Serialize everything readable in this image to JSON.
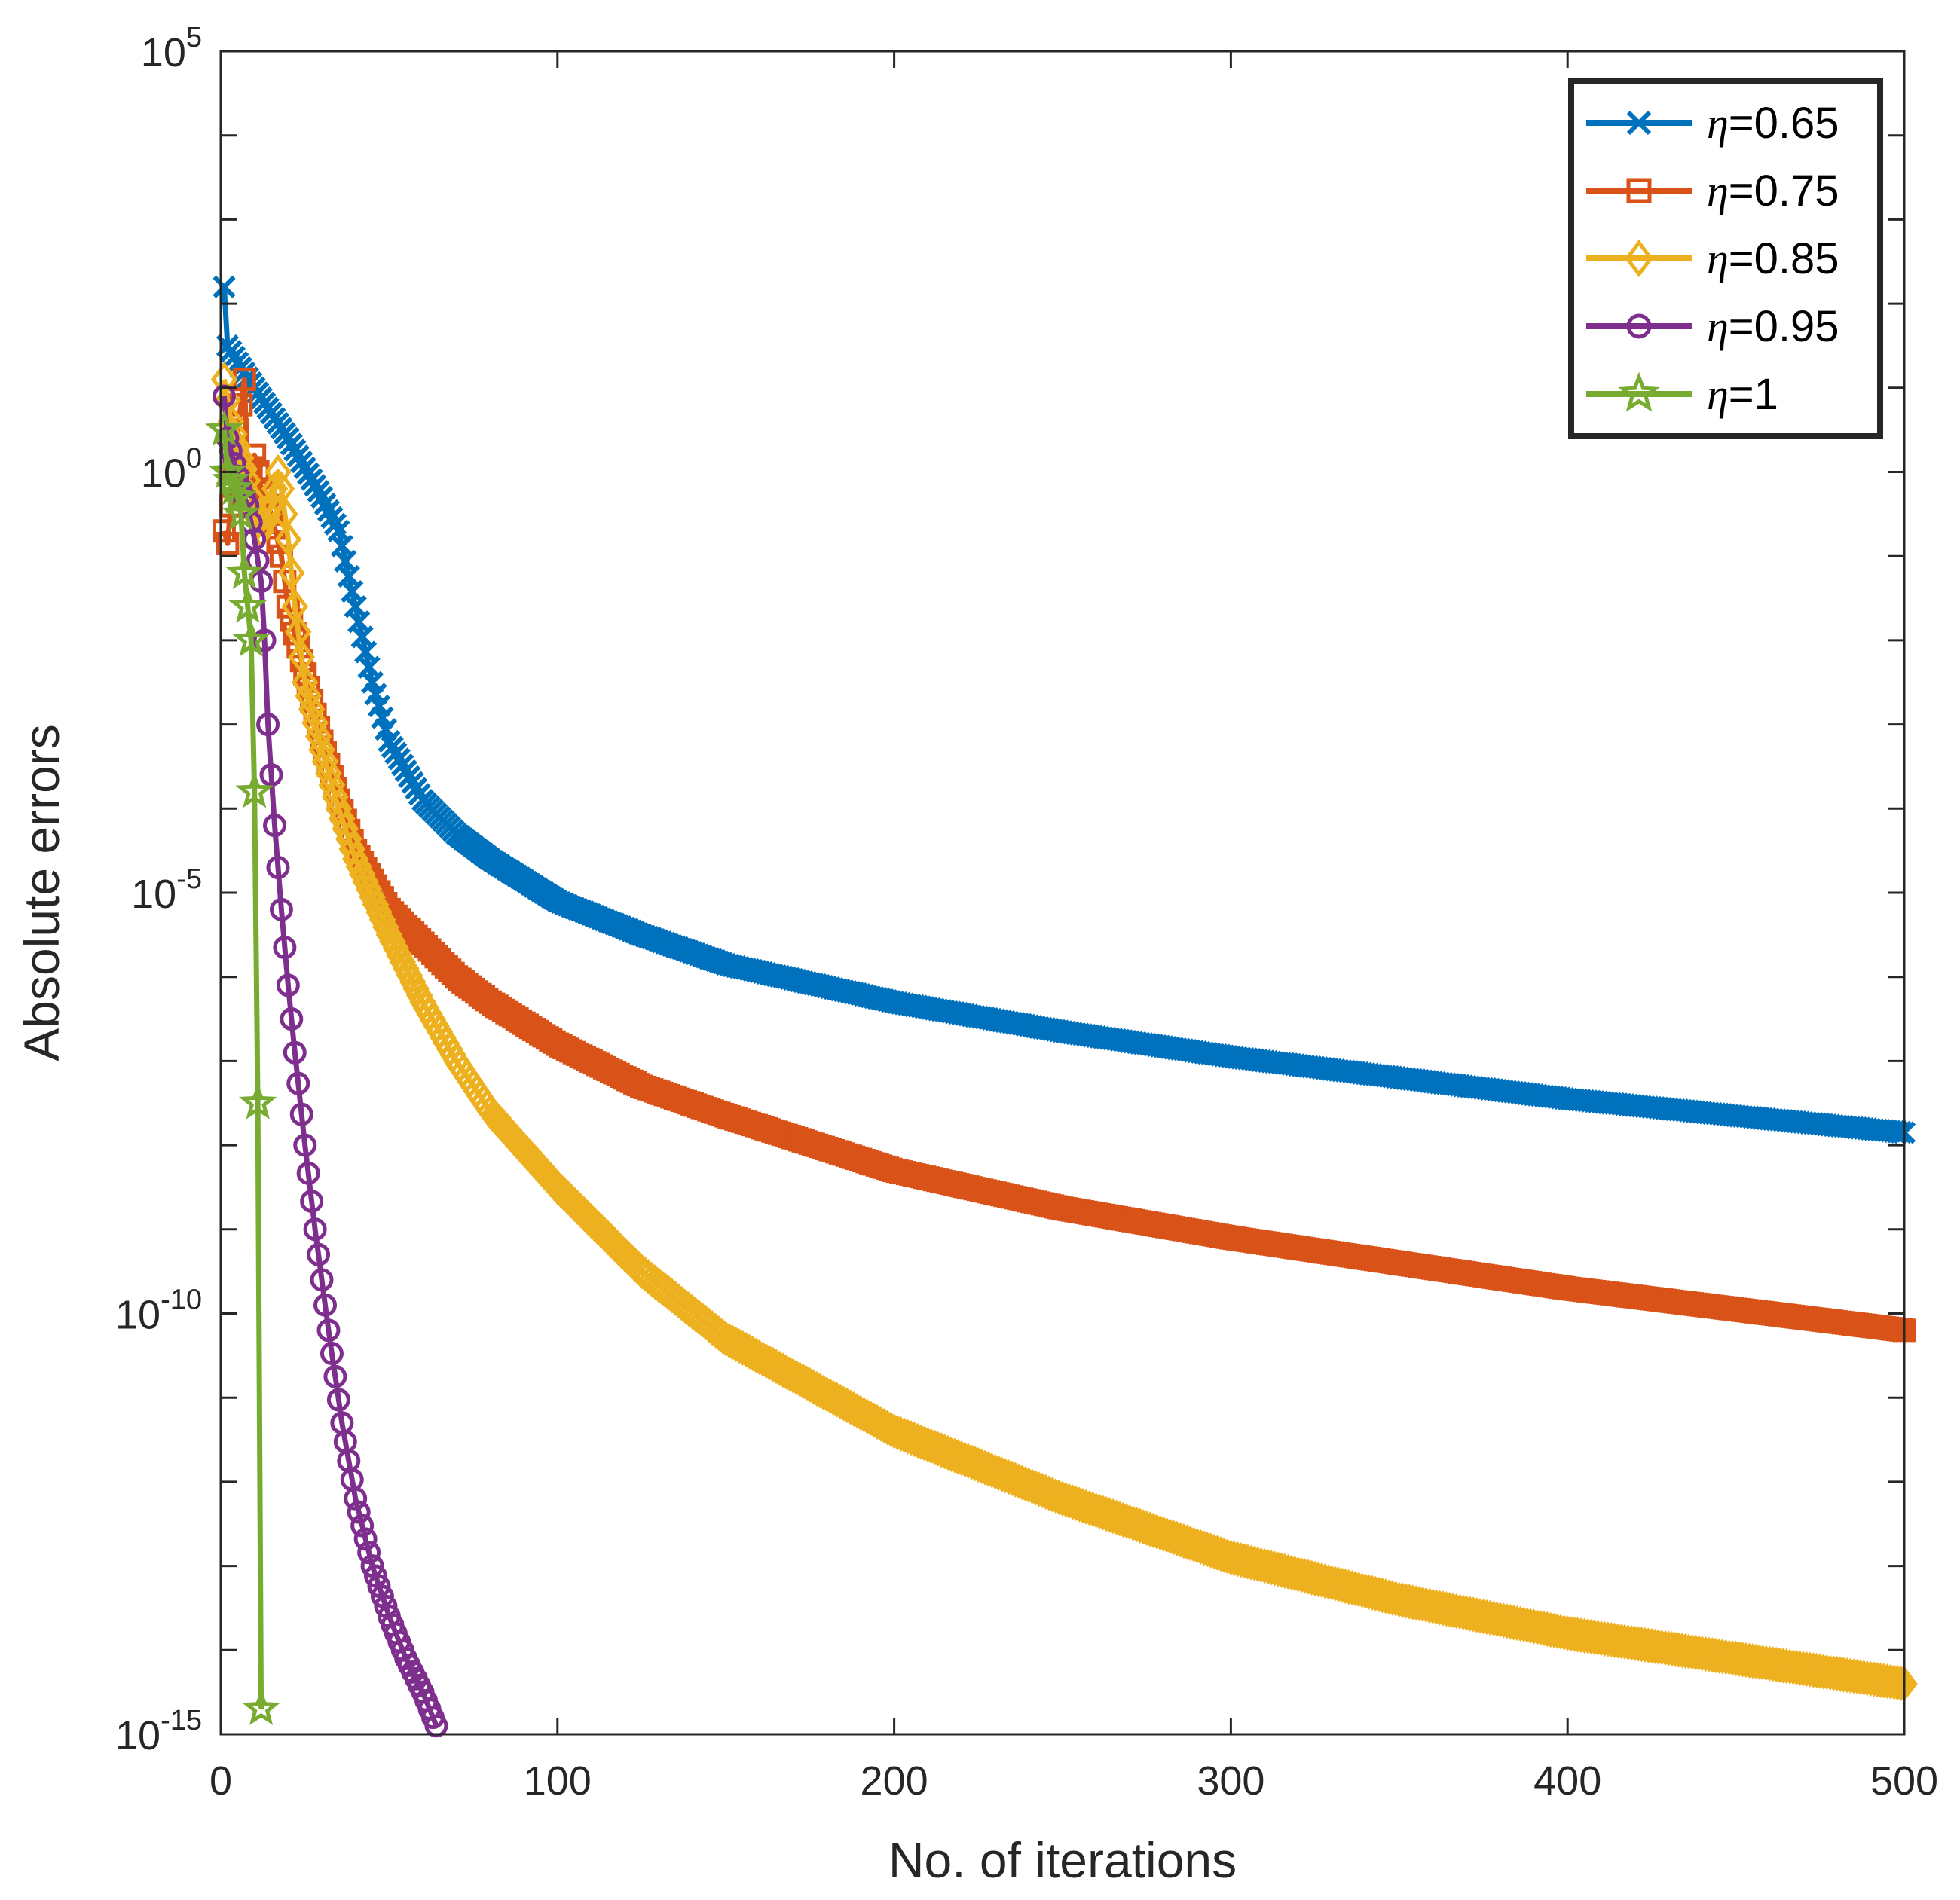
{
  "chart_data": {
    "type": "line",
    "title": "",
    "xlabel": "No. of iterations",
    "ylabel": "Absolute errors",
    "xlim": [
      0,
      500
    ],
    "ylim_log10": [
      -15,
      5
    ],
    "yscale": "log",
    "xticks": [
      0,
      100,
      200,
      300,
      400,
      500
    ],
    "yticks": [
      {
        "base": "10",
        "exp": "5",
        "value_log10": 5
      },
      {
        "base": "10",
        "exp": "0",
        "value_log10": 0
      },
      {
        "base": "10",
        "exp": "-5",
        "value_log10": -5
      },
      {
        "base": "10",
        "exp": "-10",
        "value_log10": -10
      },
      {
        "base": "10",
        "exp": "-15",
        "value_log10": -15
      }
    ],
    "grid": false,
    "legend_position": "top-right",
    "series": [
      {
        "name": "η=0.65",
        "symbol": "η",
        "value": "=0.65",
        "color": "#0072BD",
        "marker": "x",
        "x_end": 500,
        "log10_points": [
          [
            1,
            2.2
          ],
          [
            2,
            1.5
          ],
          [
            5,
            1.3
          ],
          [
            10,
            1.0
          ],
          [
            20,
            0.4
          ],
          [
            30,
            -0.3
          ],
          [
            35,
            -0.7
          ],
          [
            40,
            -1.6
          ],
          [
            45,
            -2.5
          ],
          [
            50,
            -3.2
          ],
          [
            60,
            -3.9
          ],
          [
            70,
            -4.3
          ],
          [
            80,
            -4.6
          ],
          [
            100,
            -5.1
          ],
          [
            125,
            -5.5
          ],
          [
            150,
            -5.85
          ],
          [
            200,
            -6.3
          ],
          [
            250,
            -6.65
          ],
          [
            300,
            -6.95
          ],
          [
            350,
            -7.2
          ],
          [
            400,
            -7.45
          ],
          [
            450,
            -7.65
          ],
          [
            500,
            -7.85
          ]
        ]
      },
      {
        "name": "η=0.75",
        "symbol": "η",
        "value": "=0.75",
        "color": "#D95319",
        "marker": "s",
        "x_end": 500,
        "log10_points": [
          [
            1,
            -0.7
          ],
          [
            2,
            -0.85
          ],
          [
            5,
            0.5
          ],
          [
            7,
            1.1
          ],
          [
            8,
            -0.1
          ],
          [
            10,
            0.2
          ],
          [
            12,
            -0.2
          ],
          [
            15,
            -0.5
          ],
          [
            18,
            -1.0
          ],
          [
            20,
            -1.6
          ],
          [
            25,
            -2.4
          ],
          [
            30,
            -3.2
          ],
          [
            35,
            -3.9
          ],
          [
            40,
            -4.5
          ],
          [
            50,
            -5.2
          ],
          [
            60,
            -5.6
          ],
          [
            70,
            -6.0
          ],
          [
            80,
            -6.3
          ],
          [
            100,
            -6.8
          ],
          [
            125,
            -7.3
          ],
          [
            150,
            -7.65
          ],
          [
            200,
            -8.3
          ],
          [
            250,
            -8.75
          ],
          [
            300,
            -9.1
          ],
          [
            350,
            -9.4
          ],
          [
            400,
            -9.7
          ],
          [
            450,
            -9.95
          ],
          [
            500,
            -10.2
          ]
        ]
      },
      {
        "name": "η=0.85",
        "symbol": "η",
        "value": "=0.85",
        "color": "#EDB120",
        "marker": "d",
        "x_end": 500,
        "log10_points": [
          [
            1,
            1.1
          ],
          [
            3,
            0.6
          ],
          [
            5,
            0.3
          ],
          [
            8,
            -0.1
          ],
          [
            10,
            -0.5
          ],
          [
            12,
            -0.7
          ],
          [
            15,
            -0.4
          ],
          [
            17,
            0.0
          ],
          [
            18,
            -0.2
          ],
          [
            20,
            -0.8
          ],
          [
            22,
            -1.6
          ],
          [
            25,
            -2.5
          ],
          [
            30,
            -3.3
          ],
          [
            35,
            -4.0
          ],
          [
            40,
            -4.6
          ],
          [
            50,
            -5.5
          ],
          [
            60,
            -6.3
          ],
          [
            70,
            -7.0
          ],
          [
            80,
            -7.6
          ],
          [
            100,
            -8.5
          ],
          [
            125,
            -9.5
          ],
          [
            150,
            -10.3
          ],
          [
            200,
            -11.4
          ],
          [
            250,
            -12.2
          ],
          [
            300,
            -12.9
          ],
          [
            350,
            -13.4
          ],
          [
            400,
            -13.8
          ],
          [
            450,
            -14.1
          ],
          [
            500,
            -14.4
          ]
        ]
      },
      {
        "name": "η=0.95",
        "symbol": "η",
        "value": "=0.95",
        "color": "#7E2F8E",
        "marker": "o",
        "x_end": 64,
        "log10_points": [
          [
            1,
            0.9
          ],
          [
            2,
            0.4
          ],
          [
            4,
            0.1
          ],
          [
            6,
            -0.2
          ],
          [
            8,
            -0.4
          ],
          [
            10,
            -0.8
          ],
          [
            12,
            -1.3
          ],
          [
            13,
            -2.0
          ],
          [
            14,
            -3.0
          ],
          [
            16,
            -4.2
          ],
          [
            18,
            -5.2
          ],
          [
            20,
            -6.1
          ],
          [
            22,
            -6.9
          ],
          [
            25,
            -8.0
          ],
          [
            28,
            -9.0
          ],
          [
            32,
            -10.2
          ],
          [
            36,
            -11.3
          ],
          [
            40,
            -12.2
          ],
          [
            45,
            -13.0
          ],
          [
            50,
            -13.6
          ],
          [
            55,
            -14.1
          ],
          [
            60,
            -14.5
          ],
          [
            64,
            -14.9
          ]
        ]
      },
      {
        "name": "η=1",
        "symbol": "η",
        "value": "=1",
        "color": "#77AC30",
        "marker": "star",
        "x_end": 12,
        "log10_points": [
          [
            1,
            0.5
          ],
          [
            2,
            0.0
          ],
          [
            3,
            -0.1
          ],
          [
            4,
            -0.2
          ],
          [
            5,
            -0.3
          ],
          [
            6,
            -0.5
          ],
          [
            7,
            -1.2
          ],
          [
            9,
            -2.0
          ],
          [
            10,
            -3.8
          ],
          [
            11,
            -7.5
          ],
          [
            12,
            -14.7
          ]
        ]
      }
    ]
  }
}
